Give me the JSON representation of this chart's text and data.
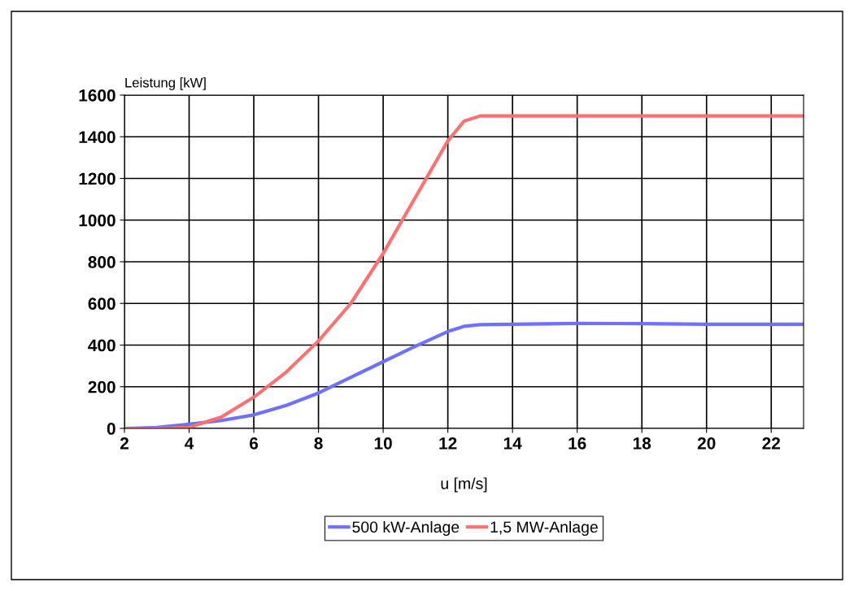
{
  "chart_data": {
    "type": "line",
    "ylabel": "Leistung [kW]",
    "xlabel": "u [m/s]",
    "x": [
      2,
      3,
      4,
      5,
      6,
      7,
      8,
      9,
      10,
      11,
      12,
      12.5,
      13,
      14,
      16,
      18,
      20,
      23
    ],
    "series": [
      {
        "name": "500 kW-Anlage",
        "color": "#7070ff",
        "values": [
          0,
          5,
          20,
          38,
          65,
          110,
          170,
          245,
          320,
          395,
          465,
          490,
          498,
          500,
          504,
          503,
          500,
          500
        ]
      },
      {
        "name": "1,5 MW-Anlage",
        "color": "#ff7070",
        "values": [
          0,
          0,
          5,
          55,
          150,
          270,
          420,
          600,
          840,
          1110,
          1380,
          1475,
          1500,
          1500,
          1500,
          1500,
          1500,
          1500
        ]
      }
    ],
    "xlim": [
      2,
      23
    ],
    "xticks": [
      2,
      4,
      6,
      8,
      10,
      12,
      14,
      16,
      18,
      20,
      22
    ],
    "ylim": [
      0,
      1600
    ],
    "yticks": [
      0,
      200,
      400,
      600,
      800,
      1000,
      1200,
      1400,
      1600
    ],
    "grid": true,
    "legend": "bottom",
    "marker": "none",
    "line_style": "solid"
  }
}
